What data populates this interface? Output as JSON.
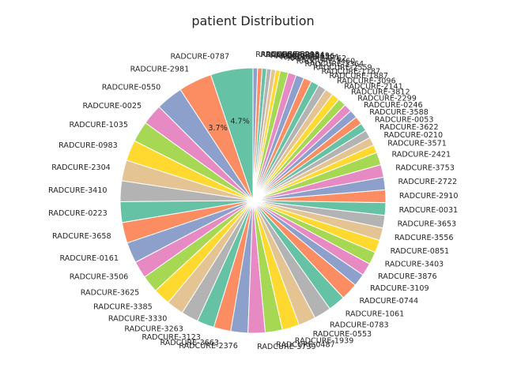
{
  "chart_data": {
    "type": "pie",
    "title": "patient Distribution",
    "palette": [
      "#66c2a5",
      "#fc8d62",
      "#8da0cb",
      "#e78ac3",
      "#a6d854",
      "#ffd92f",
      "#e5c494",
      "#b3b3b3"
    ],
    "slices": [
      {
        "label": "RADCURE-0787",
        "value": 4.7,
        "pct_text": "4.7%"
      },
      {
        "label": "RADCURE-2981",
        "value": 3.7,
        "pct_text": "3.7%"
      },
      {
        "label": "RADCURE-0550",
        "value": 3.0
      },
      {
        "label": "RADCURE-0025",
        "value": 2.3
      },
      {
        "label": "RADCURE-1035",
        "value": 2.3
      },
      {
        "label": "RADCURE-0983",
        "value": 2.3
      },
      {
        "label": "RADCURE-2304",
        "value": 2.3
      },
      {
        "label": "RADCURE-3410",
        "value": 2.3
      },
      {
        "label": "RADCURE-0223",
        "value": 2.3
      },
      {
        "label": "RADCURE-3658",
        "value": 2.3
      },
      {
        "label": "RADCURE-0161",
        "value": 2.3
      },
      {
        "label": "RADCURE-3506",
        "value": 1.9
      },
      {
        "label": "RADCURE-3625",
        "value": 1.9
      },
      {
        "label": "RADCURE-3385",
        "value": 1.9
      },
      {
        "label": "RADCURE-3330",
        "value": 1.9
      },
      {
        "label": "RADCURE-3263",
        "value": 1.9
      },
      {
        "label": "RADCURE-3123",
        "value": 1.9
      },
      {
        "label": "RADCURE-3663",
        "value": 1.9
      },
      {
        "label": "RADCURE-2376",
        "value": 1.9
      },
      {
        "label": "RADCURE-3739",
        "value": 1.9
      },
      {
        "label": "RADCURE-0487",
        "value": 1.9
      },
      {
        "label": "RADCURE-1939",
        "value": 1.9
      },
      {
        "label": "RADCURE-0553",
        "value": 1.9
      },
      {
        "label": "RADCURE-0783",
        "value": 1.9
      },
      {
        "label": "RADCURE-1061",
        "value": 1.9
      },
      {
        "label": "RADCURE-0744",
        "value": 1.9
      },
      {
        "label": "RADCURE-3109",
        "value": 1.4
      },
      {
        "label": "RADCURE-3876",
        "value": 1.4
      },
      {
        "label": "RADCURE-3403",
        "value": 1.4
      },
      {
        "label": "RADCURE-0851",
        "value": 1.4
      },
      {
        "label": "RADCURE-3556",
        "value": 1.4
      },
      {
        "label": "RADCURE-3653",
        "value": 1.4
      },
      {
        "label": "RADCURE-0031",
        "value": 1.4
      },
      {
        "label": "RADCURE-2910",
        "value": 1.4
      },
      {
        "label": "RADCURE-2722",
        "value": 1.4
      },
      {
        "label": "RADCURE-3753",
        "value": 1.4
      },
      {
        "label": "RADCURE-2421",
        "value": 1.4
      },
      {
        "label": "RADCURE-3571",
        "value": 0.9
      },
      {
        "label": "RADCURE-0210",
        "value": 0.9
      },
      {
        "label": "RADCURE-3622",
        "value": 0.9
      },
      {
        "label": "RADCURE-0053",
        "value": 0.9
      },
      {
        "label": "RADCURE-3588",
        "value": 0.9
      },
      {
        "label": "RADCURE-0246",
        "value": 0.9
      },
      {
        "label": "RADCURE-2299",
        "value": 0.9
      },
      {
        "label": "RADCURE-3812",
        "value": 0.9
      },
      {
        "label": "RADCURE-2141",
        "value": 0.9
      },
      {
        "label": "RADCURE-3096",
        "value": 0.9
      },
      {
        "label": "RADCURE-1887",
        "value": 0.9
      },
      {
        "label": "RADCURE-1187",
        "value": 0.9
      },
      {
        "label": "RADCURE-2559",
        "value": 0.9
      },
      {
        "label": "RADCURE-3364",
        "value": 0.9
      },
      {
        "label": "RADCURE-3460",
        "value": 0.9
      },
      {
        "label": "RADCURE-0762",
        "value": 0.9
      },
      {
        "label": "RADCURE-3591",
        "value": 0.5
      },
      {
        "label": "RADCURE-2696",
        "value": 0.5
      },
      {
        "label": "RADCURE-3013",
        "value": 0.5
      },
      {
        "label": "RADCURE-3384",
        "value": 0.5
      },
      {
        "label": "RADCURE-3218",
        "value": 0.5
      },
      {
        "label": "RADCURE-3529",
        "value": 0.5
      }
    ]
  }
}
